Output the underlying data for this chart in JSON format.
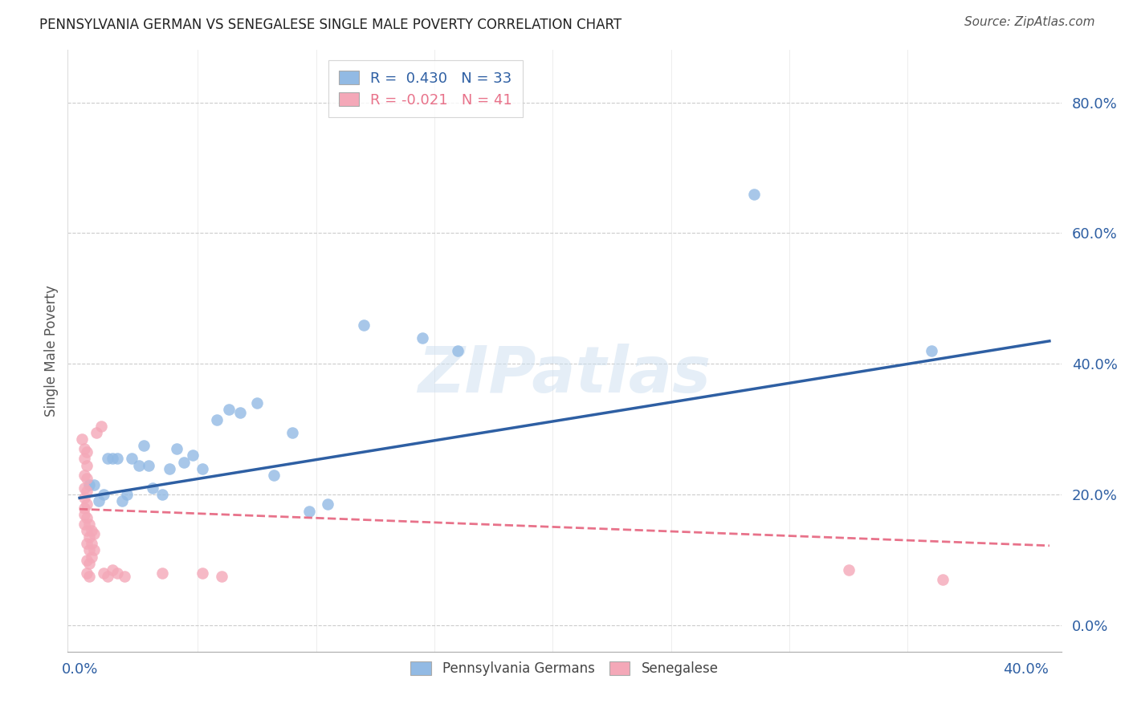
{
  "title": "PENNSYLVANIA GERMAN VS SENEGALESE SINGLE MALE POVERTY CORRELATION CHART",
  "source": "Source: ZipAtlas.com",
  "ylabel_label": "Single Male Poverty",
  "xmin": -0.005,
  "xmax": 0.415,
  "ymin": -0.04,
  "ymax": 0.88,
  "xtick_positions": [
    0.0,
    0.4
  ],
  "xtick_labels": [
    "0.0%",
    "40.0%"
  ],
  "yticks_right": [
    0.0,
    0.2,
    0.4,
    0.6,
    0.8
  ],
  "ytick_labels_right": [
    "0.0%",
    "20.0%",
    "40.0%",
    "60.0%",
    "80.0%"
  ],
  "legend_blue_label": "Pennsylvania Germans",
  "legend_pink_label": "Senegalese",
  "blue_R": "0.430",
  "blue_N": "33",
  "pink_R": "-0.021",
  "pink_N": "41",
  "blue_color": "#92BAE4",
  "pink_color": "#F4A8B8",
  "blue_line_color": "#2E5FA3",
  "pink_line_color": "#E8728A",
  "blue_line_x0": 0.0,
  "blue_line_y0": 0.195,
  "blue_line_x1": 0.41,
  "blue_line_y1": 0.435,
  "pink_line_x0": 0.0,
  "pink_line_y0": 0.178,
  "pink_line_x1": 0.41,
  "pink_line_y1": 0.122,
  "blue_points": [
    [
      0.004,
      0.215
    ],
    [
      0.006,
      0.215
    ],
    [
      0.008,
      0.19
    ],
    [
      0.01,
      0.2
    ],
    [
      0.012,
      0.255
    ],
    [
      0.014,
      0.255
    ],
    [
      0.016,
      0.255
    ],
    [
      0.018,
      0.19
    ],
    [
      0.02,
      0.2
    ],
    [
      0.022,
      0.255
    ],
    [
      0.025,
      0.245
    ],
    [
      0.027,
      0.275
    ],
    [
      0.029,
      0.245
    ],
    [
      0.031,
      0.21
    ],
    [
      0.035,
      0.2
    ],
    [
      0.038,
      0.24
    ],
    [
      0.041,
      0.27
    ],
    [
      0.044,
      0.25
    ],
    [
      0.048,
      0.26
    ],
    [
      0.052,
      0.24
    ],
    [
      0.058,
      0.315
    ],
    [
      0.063,
      0.33
    ],
    [
      0.068,
      0.325
    ],
    [
      0.075,
      0.34
    ],
    [
      0.082,
      0.23
    ],
    [
      0.09,
      0.295
    ],
    [
      0.097,
      0.175
    ],
    [
      0.105,
      0.185
    ],
    [
      0.12,
      0.46
    ],
    [
      0.145,
      0.44
    ],
    [
      0.16,
      0.42
    ],
    [
      0.285,
      0.66
    ],
    [
      0.36,
      0.42
    ]
  ],
  "pink_points": [
    [
      0.001,
      0.285
    ],
    [
      0.002,
      0.27
    ],
    [
      0.002,
      0.255
    ],
    [
      0.002,
      0.23
    ],
    [
      0.002,
      0.21
    ],
    [
      0.002,
      0.195
    ],
    [
      0.002,
      0.18
    ],
    [
      0.002,
      0.17
    ],
    [
      0.002,
      0.155
    ],
    [
      0.003,
      0.265
    ],
    [
      0.003,
      0.245
    ],
    [
      0.003,
      0.225
    ],
    [
      0.003,
      0.205
    ],
    [
      0.003,
      0.185
    ],
    [
      0.003,
      0.165
    ],
    [
      0.003,
      0.145
    ],
    [
      0.003,
      0.125
    ],
    [
      0.003,
      0.1
    ],
    [
      0.003,
      0.08
    ],
    [
      0.004,
      0.155
    ],
    [
      0.004,
      0.135
    ],
    [
      0.004,
      0.115
    ],
    [
      0.004,
      0.095
    ],
    [
      0.004,
      0.075
    ],
    [
      0.005,
      0.145
    ],
    [
      0.005,
      0.125
    ],
    [
      0.005,
      0.105
    ],
    [
      0.006,
      0.14
    ],
    [
      0.006,
      0.115
    ],
    [
      0.007,
      0.295
    ],
    [
      0.009,
      0.305
    ],
    [
      0.01,
      0.08
    ],
    [
      0.012,
      0.075
    ],
    [
      0.014,
      0.085
    ],
    [
      0.016,
      0.08
    ],
    [
      0.019,
      0.075
    ],
    [
      0.035,
      0.08
    ],
    [
      0.052,
      0.08
    ],
    [
      0.06,
      0.075
    ],
    [
      0.325,
      0.085
    ],
    [
      0.365,
      0.07
    ]
  ],
  "watermark_text": "ZIPatlas",
  "background_color": "#ffffff",
  "grid_color": "#cccccc"
}
